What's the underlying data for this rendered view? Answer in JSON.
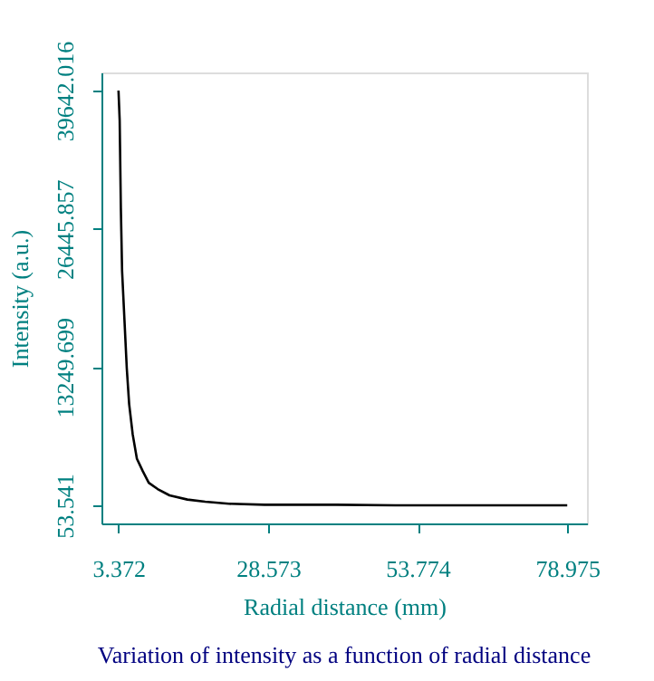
{
  "chart_data": {
    "type": "line",
    "title": "Variation of intensity as a function of radial distance",
    "xlabel": "Radial distance (mm)",
    "ylabel": "Intensity (a.u.)",
    "x": [
      3.372,
      3.57,
      3.77,
      3.98,
      4.38,
      4.77,
      5.17,
      5.77,
      6.47,
      7.47,
      8.47,
      9.97,
      11.97,
      14.97,
      17.97,
      21.97,
      28.0,
      35.0,
      40.0,
      50.0,
      60.0,
      70.0,
      78.975
    ],
    "series": [
      {
        "color": "#000000",
        "values": [
          39640,
          36800,
          28400,
          22400,
          17700,
          13100,
          9700,
          6800,
          4500,
          3300,
          2200,
          1600,
          1000,
          600,
          400,
          200,
          100,
          100,
          100,
          50,
          50,
          50,
          50
        ]
      }
    ],
    "xlim": [
      0.5,
      82.3
    ],
    "ylim": [
      -1680,
      41370
    ],
    "xticks": [
      3.372,
      28.573,
      53.774,
      78.975
    ],
    "yticks": [
      53.541,
      13249.699,
      26445.857,
      39642.016
    ],
    "grid": false,
    "marker": "none",
    "line_style": "solid"
  }
}
